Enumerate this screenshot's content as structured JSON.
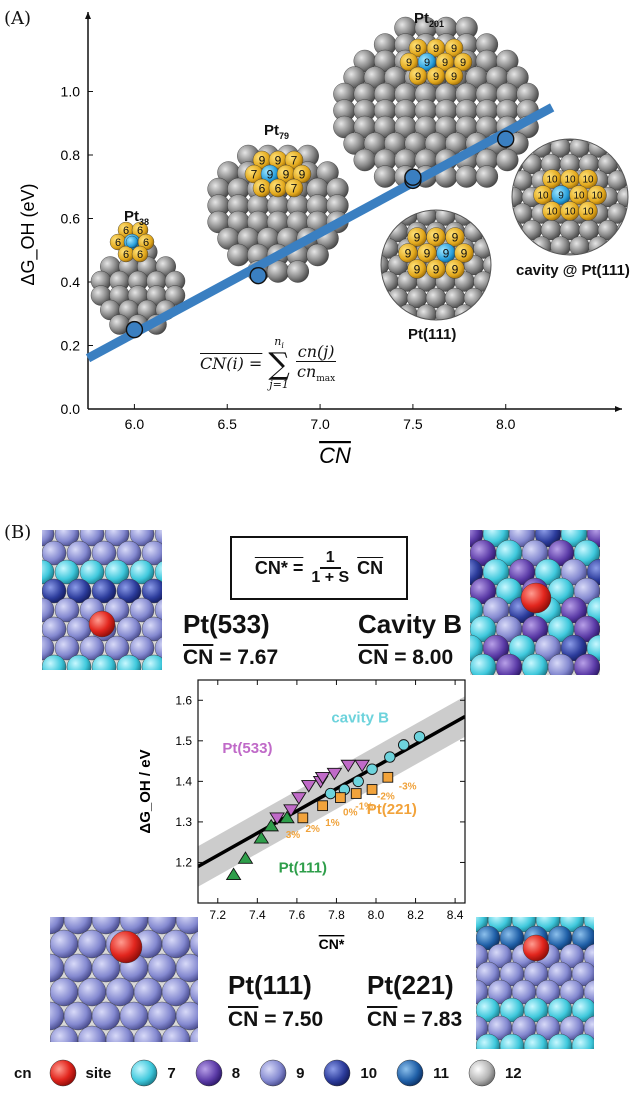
{
  "panel_a": {
    "label": "(A)",
    "formula_lhs": "CN(i) =",
    "formula_sum_top": "n",
    "formula_sum_sub": "i",
    "formula_sum_bottom": "j=1",
    "formula_num": "cn(j)",
    "formula_den": "cn",
    "formula_den_sub": "max",
    "clusters": [
      {
        "name": "Pt",
        "sub": "38"
      },
      {
        "name": "Pt",
        "sub": "79"
      },
      {
        "name": "Pt",
        "sub": "201"
      },
      {
        "name": "Pt(111)"
      },
      {
        "name": "cavity @ Pt(111)"
      }
    ]
  },
  "panel_b": {
    "label": "(B)",
    "formula_lhs": "CN* =",
    "formula_num": "1",
    "formula_den": "1 + S",
    "formula_rhs": "CN",
    "surfaces": [
      {
        "name": "Pt(533)",
        "cn_label": "CN",
        "cn_value": "= 7.67"
      },
      {
        "name": "Cavity B",
        "cn_label": "CN",
        "cn_value": "= 8.00"
      },
      {
        "name": "Pt(111)",
        "cn_label": "CN",
        "cn_value": "= 7.50"
      },
      {
        "name": "Pt(221)",
        "cn_label": "CN",
        "cn_value": "= 7.83"
      }
    ],
    "legend": {
      "title": "cn",
      "items": [
        {
          "label": "site",
          "color": "#e8322c"
        },
        {
          "label": "7",
          "color": "#4fd4e0"
        },
        {
          "label": "8",
          "color": "#6b4fb0"
        },
        {
          "label": "9",
          "color": "#8c8fd6"
        },
        {
          "label": "10",
          "color": "#3444a8"
        },
        {
          "label": "11",
          "color": "#2560a8"
        },
        {
          "label": "12",
          "color": "#a8a8a8"
        }
      ]
    },
    "percent_labels": [
      "3%",
      "2%",
      "1%",
      "0%",
      "-1%",
      "-2%",
      "-3%"
    ]
  },
  "chart_data": [
    {
      "type": "scatter",
      "xlabel": "CN",
      "ylabel": "ΔG_OH (eV)",
      "xlim": [
        5.75,
        8.4
      ],
      "ylim": [
        0,
        1.2
      ],
      "xticks": [
        6.0,
        6.5,
        7.0,
        7.5,
        8.0
      ],
      "yticks": [
        0.0,
        0.2,
        0.4,
        0.6,
        0.8,
        1.0
      ],
      "grid": false,
      "fit_line": {
        "x": [
          5.75,
          8.25
        ],
        "y": [
          0.16,
          0.95
        ]
      },
      "series": [
        {
          "points": [
            {
              "x": 6.0,
              "y": 0.25
            },
            {
              "x": 6.667,
              "y": 0.42
            },
            {
              "x": 7.5,
              "y": 0.72
            },
            {
              "x": 7.5,
              "y": 0.73
            },
            {
              "x": 8.0,
              "y": 0.85
            }
          ]
        }
      ],
      "colors": {
        "line": "#3a7fc1",
        "marker": "#3a7fc1"
      }
    },
    {
      "type": "scatter",
      "xlabel": "CN*",
      "ylabel": "ΔG_OH / eV",
      "xlim": [
        7.1,
        8.45
      ],
      "ylim": [
        1.1,
        1.65
      ],
      "xticks": [
        7.2,
        7.4,
        7.6,
        7.8,
        8.0,
        8.2,
        8.4
      ],
      "yticks": [
        1.2,
        1.3,
        1.4,
        1.5,
        1.6
      ],
      "grid": false,
      "fit_line": {
        "x": [
          7.1,
          8.45
        ],
        "y": [
          1.19,
          1.56
        ]
      },
      "band_halfwidth": 0.05,
      "series": [
        {
          "name": "cavity B",
          "marker": "circle",
          "color": "#6dd3dc",
          "points": [
            [
              7.77,
              1.37
            ],
            [
              7.84,
              1.38
            ],
            [
              7.91,
              1.4
            ],
            [
              7.98,
              1.43
            ],
            [
              8.07,
              1.46
            ],
            [
              8.14,
              1.49
            ],
            [
              8.22,
              1.51
            ]
          ]
        },
        {
          "name": "Pt(533)",
          "marker": "triangle-down",
          "color": "#c06ac8",
          "points": [
            [
              7.5,
              1.31
            ],
            [
              7.57,
              1.33
            ],
            [
              7.61,
              1.36
            ],
            [
              7.66,
              1.39
            ],
            [
              7.72,
              1.4
            ],
            [
              7.73,
              1.41
            ],
            [
              7.79,
              1.42
            ],
            [
              7.86,
              1.44
            ],
            [
              7.93,
              1.44
            ]
          ]
        },
        {
          "name": "Pt(221)",
          "marker": "square",
          "color": "#f2a33b",
          "points": [
            [
              7.63,
              1.31
            ],
            [
              7.73,
              1.34
            ],
            [
              7.82,
              1.36
            ],
            [
              7.9,
              1.37
            ],
            [
              7.98,
              1.38
            ],
            [
              8.06,
              1.41
            ]
          ]
        },
        {
          "name": "Pt(111)",
          "marker": "triangle-up",
          "color": "#2e9e4a",
          "points": [
            [
              7.28,
              1.17
            ],
            [
              7.34,
              1.21
            ],
            [
              7.42,
              1.26
            ],
            [
              7.47,
              1.29
            ],
            [
              7.55,
              1.31
            ]
          ]
        }
      ]
    }
  ]
}
